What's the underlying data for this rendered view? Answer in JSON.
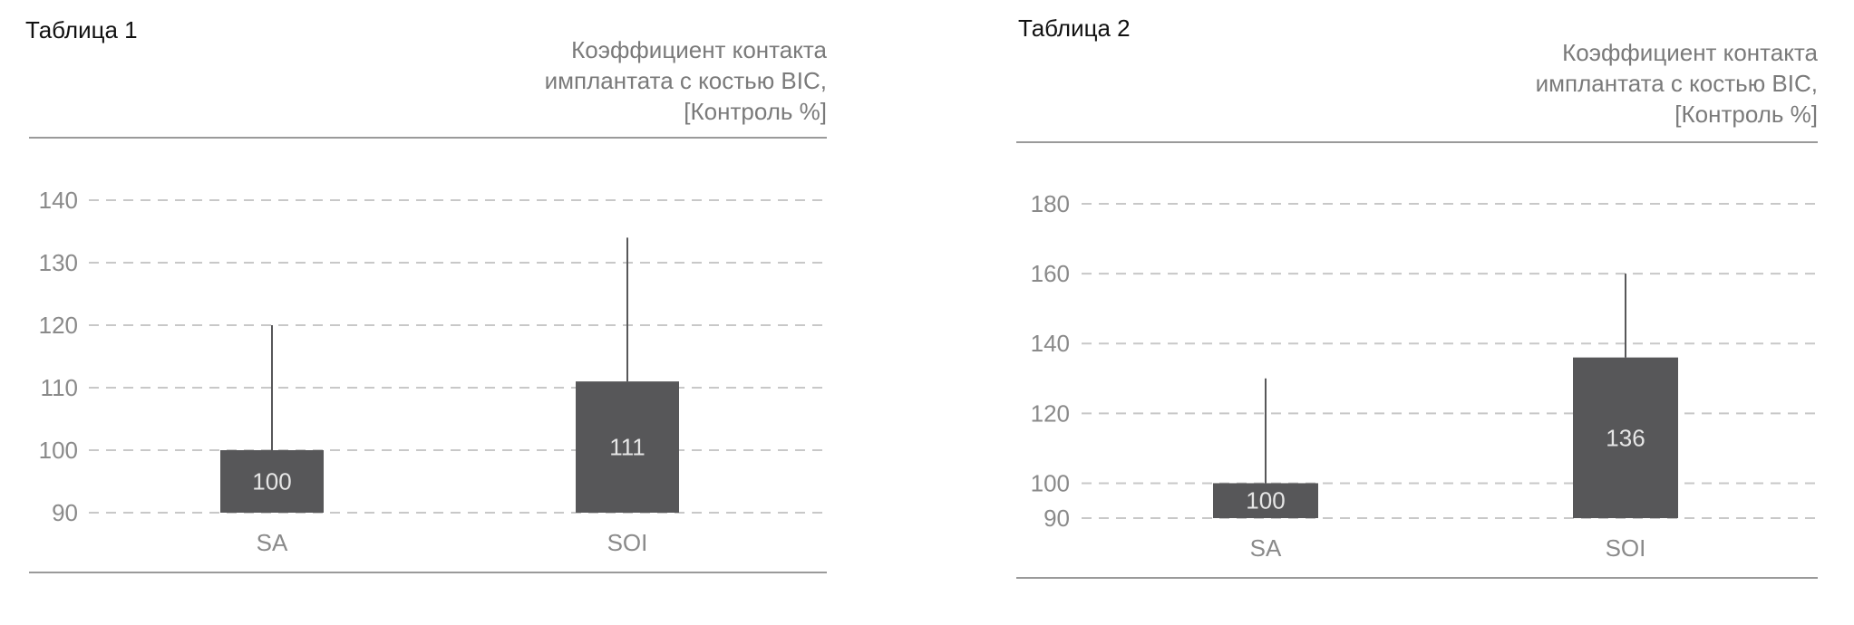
{
  "colors": {
    "bar": "#575759",
    "whisker": "#575759",
    "grid": "#c8c8c8",
    "tick_text": "#8a8a8a",
    "bar_label": "#e6e6e6",
    "title_text": "#111111",
    "rule": "#9a9a9a"
  },
  "chart_data": [
    {
      "type": "bar",
      "panel_title": "Таблица 1",
      "ylabel_lines": [
        "Коэффициент контакта",
        "имплантата с костью BIC,",
        "[Контроль %]"
      ],
      "xlabel": "",
      "categories": [
        "SA",
        "SOI"
      ],
      "values": [
        100,
        111
      ],
      "value_labels": [
        "100",
        "111"
      ],
      "error_upper": [
        120,
        134
      ],
      "ylim": [
        90,
        140
      ],
      "yticks": [
        90,
        100,
        110,
        120,
        130,
        140
      ],
      "grid": true,
      "grid_style": "dashed"
    },
    {
      "type": "bar",
      "panel_title": "Таблица 2",
      "ylabel_lines": [
        "Коэффициент контакта",
        "имплантата с костью BIC,",
        "[Контроль %]"
      ],
      "xlabel": "",
      "categories": [
        "SA",
        "SOI"
      ],
      "values": [
        100,
        136
      ],
      "value_labels": [
        "100",
        "136"
      ],
      "error_upper": [
        130,
        160
      ],
      "ylim": [
        90,
        180
      ],
      "yticks": [
        90,
        100,
        120,
        140,
        160,
        180
      ],
      "grid": true,
      "grid_style": "dashed"
    }
  ]
}
